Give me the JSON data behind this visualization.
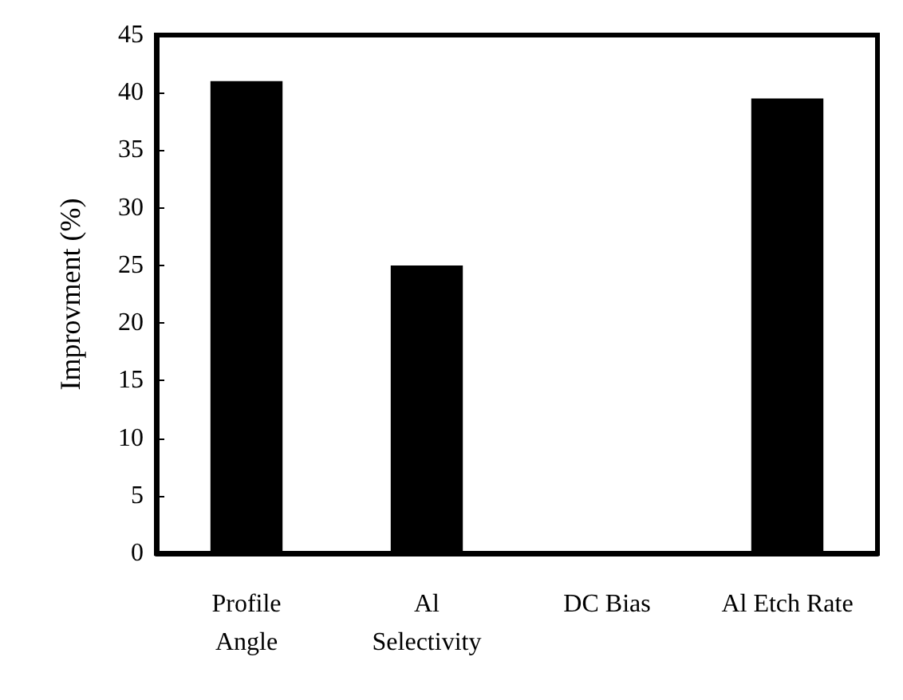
{
  "chart_data": {
    "type": "bar",
    "ylabel": "Improvment (%)",
    "categories": [
      "Profile\nAngle",
      "Al\nSelectivity",
      "DC Bias",
      "Al Etch Rate"
    ],
    "values": [
      41,
      25,
      0,
      39.5
    ],
    "color": "#000000",
    "ylim": [
      0,
      45
    ],
    "yticks": [
      0,
      5,
      10,
      15,
      20,
      25,
      30,
      35,
      40,
      45
    ],
    "grid": false
  }
}
